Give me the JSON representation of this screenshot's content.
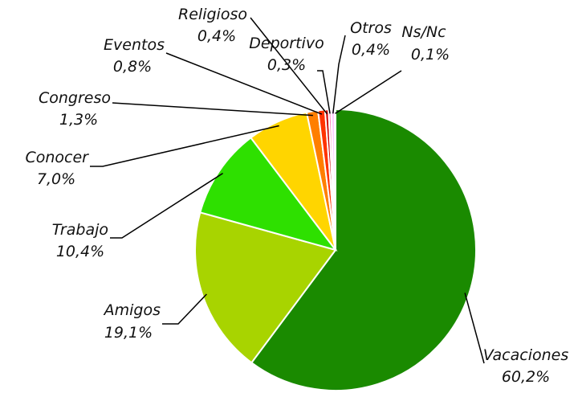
{
  "chart_data": {
    "type": "pie",
    "categories": [
      "Vacaciones",
      "Amigos",
      "Trabajo",
      "Conocer",
      "Congreso",
      "Eventos",
      "Religioso",
      "Deportivo",
      "Otros",
      "Ns/Nc"
    ],
    "values": [
      60.2,
      19.1,
      10.4,
      7.0,
      1.3,
      0.8,
      0.4,
      0.3,
      0.4,
      0.1
    ],
    "value_labels": [
      "60,2%",
      "19,1%",
      "10,4%",
      "7,0%",
      "1,3%",
      "0,8%",
      "0,4%",
      "0,3%",
      "0,4%",
      "0,1%"
    ],
    "colors": [
      "#1a8a00",
      "#a8d400",
      "#2ee000",
      "#ffd500",
      "#ff7f00",
      "#ff3300",
      "#cc0000",
      "#ff88bb",
      "#ffccff",
      "#ccccff"
    ]
  }
}
